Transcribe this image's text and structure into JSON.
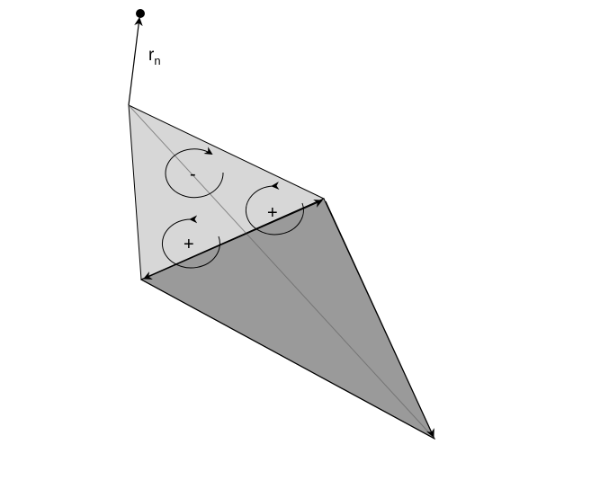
{
  "diagram": {
    "vector_label": {
      "base": "r",
      "subscript": "n"
    },
    "circulation_labels": {
      "upper_left": "-",
      "lower_left": "+",
      "right": "+"
    },
    "colors": {
      "light_face": "#d7d7d7",
      "dark_face": "#9a9a9a",
      "stroke": "#000000",
      "background": "#ffffff"
    }
  }
}
